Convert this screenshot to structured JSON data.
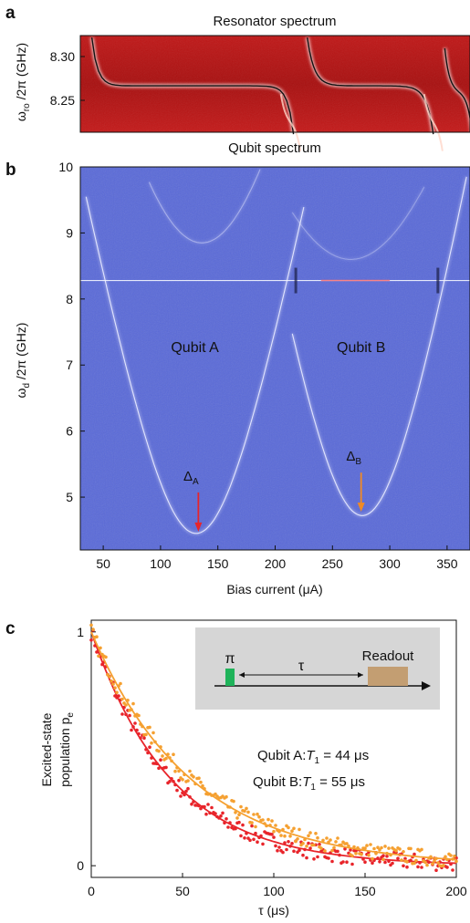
{
  "panels": {
    "a": "a",
    "b": "b",
    "c": "c"
  },
  "chart_data": [
    {
      "type": "heatmap",
      "title": "Resonator spectrum",
      "ylabel": "ω_ro /2π (GHz)",
      "ylim": [
        8.22,
        8.32
      ],
      "yticks": [
        "8.30",
        "8.25"
      ],
      "xlim": [
        30,
        370
      ],
      "colormap": "red-white-black"
    },
    {
      "type": "heatmap",
      "title": "Qubit spectrum",
      "xlabel": "Bias current (μA)",
      "ylabel": "ω_d /2π (GHz)",
      "xlim": [
        30,
        370
      ],
      "ylim": [
        4.2,
        10
      ],
      "xticks": [
        "50",
        "100",
        "150",
        "200",
        "250",
        "300",
        "350"
      ],
      "yticks": [
        "5",
        "6",
        "7",
        "8",
        "9",
        "10"
      ],
      "annotations": [
        {
          "text": "Qubit A",
          "color": "#e8242a",
          "x": 130,
          "y": 7.2
        },
        {
          "text": "Qubit B",
          "color": "#f08a24",
          "x": 275,
          "y": 7.2
        },
        {
          "text": "Δ_A",
          "color": "#e8242a",
          "x": 133,
          "y": 4.45
        },
        {
          "text": "Δ_B",
          "color": "#f08a24",
          "x": 275,
          "y": 4.75
        }
      ],
      "curves": {
        "qubit_a_min": {
          "x": 131,
          "y": 4.45
        },
        "qubit_b_min": {
          "x": 276,
          "y": 4.72
        },
        "resonator_line_y": 8.28
      }
    },
    {
      "type": "scatter",
      "xlabel": "τ (μs)",
      "ylabel": "Excited-state population p_e",
      "ylabel_lines": [
        "Excited-state",
        "population p"
      ],
      "ylabel_sub": "e",
      "xlim": [
        0,
        200
      ],
      "ylim": [
        -0.05,
        1.05
      ],
      "xticks": [
        "0",
        "50",
        "100",
        "150",
        "200"
      ],
      "yticks": [
        "0",
        "1"
      ],
      "inset": {
        "pi_label": "π",
        "tau_label": "τ",
        "readout_label": "Readout"
      },
      "series": [
        {
          "name": "Qubit A: T1 = 44 μs",
          "label_prefix": "Qubit A:",
          "label_T": "T",
          "label_sub": "1",
          "label_suffix": " = 44 μs",
          "color": "#e8242a",
          "T1": 44
        },
        {
          "name": "Qubit B: T1 = 55 μs",
          "label_prefix": "Qubit B:",
          "label_T": "T",
          "label_sub": "1",
          "label_suffix": " = 55 μs",
          "color": "#f5a030",
          "T1": 55
        }
      ]
    }
  ]
}
